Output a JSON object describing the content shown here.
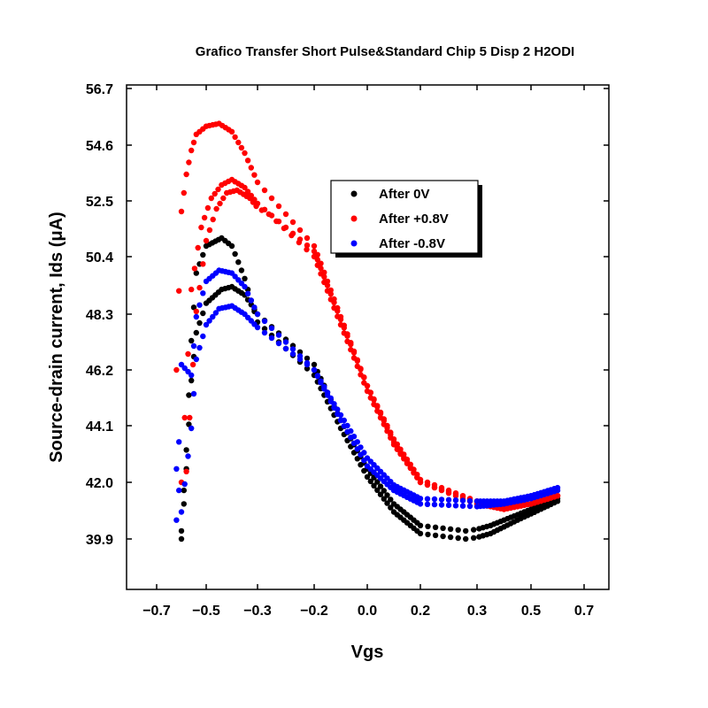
{
  "chart_data": {
    "type": "scatter",
    "title": "Grafico Transfer Short Pulse&Standard Chip 5 Disp 2 H2ODI",
    "xlabel": "Vgs",
    "ylabel": "Source-drain current, Ids (μA)",
    "xlim": [
      -0.77,
      0.77
    ],
    "ylim": [
      37.7,
      56.7
    ],
    "x_ticks": [
      -0.7,
      -0.5,
      -0.3,
      -0.2,
      0.0,
      0.2,
      0.3,
      0.5,
      0.7
    ],
    "x_tick_labels": [
      "−0.7",
      "−0.5",
      "−0.3",
      "−0.2",
      "0.0",
      "0.2",
      "0.3",
      "0.5",
      "0.7"
    ],
    "y_ticks": [
      39.9,
      42.0,
      44.1,
      46.2,
      48.3,
      50.4,
      52.5,
      54.6,
      56.7
    ],
    "y_tick_labels": [
      "39.9",
      "42.0",
      "44.1",
      "46.2",
      "48.3",
      "50.4",
      "52.5",
      "54.6",
      "56.7"
    ],
    "grid": false,
    "legend_position": "upper-center",
    "series": [
      {
        "name": "After 0V",
        "color": "#000000",
        "sweeps": [
          {
            "x": [
              -0.6,
              -0.58,
              -0.56,
              -0.54,
              -0.5,
              -0.44,
              -0.4,
              -0.35,
              -0.3,
              -0.2,
              -0.1,
              0.0,
              0.1,
              0.2,
              0.28,
              0.35,
              0.45,
              0.6
            ],
            "y": [
              40.2,
              43.2,
              47.3,
              49.8,
              50.8,
              51.1,
              50.8,
              49.6,
              48.0,
              46.0,
              44.0,
              42.2,
              40.9,
              40.1,
              39.9,
              40.1,
              40.6,
              41.3
            ]
          },
          {
            "x": [
              -0.6,
              -0.58,
              -0.56,
              -0.54,
              -0.5,
              -0.44,
              -0.4,
              -0.35,
              -0.3,
              -0.2,
              -0.1,
              0.0,
              0.1,
              0.2,
              0.28,
              0.35,
              0.45,
              0.6
            ],
            "y": [
              39.9,
              42.5,
              45.8,
              47.6,
              48.7,
              49.2,
              49.3,
              49.0,
              48.3,
              46.4,
              44.3,
              42.5,
              41.2,
              40.4,
              40.2,
              40.4,
              40.8,
              41.4
            ]
          }
        ]
      },
      {
        "name": "After +0.8V",
        "color": "#ff0000",
        "sweeps": [
          {
            "x": [
              -0.62,
              -0.6,
              -0.58,
              -0.56,
              -0.54,
              -0.5,
              -0.45,
              -0.4,
              -0.35,
              -0.3,
              -0.2,
              -0.1,
              0.0,
              0.1,
              0.2,
              0.3,
              0.4,
              0.5,
              0.6
            ],
            "y": [
              46.2,
              52.1,
              53.5,
              54.4,
              55.0,
              55.3,
              55.4,
              55.1,
              54.3,
              53.2,
              50.8,
              48.2,
              45.6,
              43.5,
              42.0,
              41.3,
              41.1,
              41.2,
              41.5
            ]
          },
          {
            "x": [
              -0.6,
              -0.56,
              -0.52,
              -0.48,
              -0.44,
              -0.4,
              -0.35,
              -0.3,
              -0.2,
              -0.1,
              0.0,
              0.1,
              0.2,
              0.3,
              0.4,
              0.5,
              0.6
            ],
            "y": [
              42.0,
              49.2,
              51.5,
              52.6,
              53.1,
              53.3,
              53.0,
              52.4,
              50.6,
              48.1,
              45.6,
              43.6,
              42.1,
              41.3,
              41.1,
              41.2,
              41.5
            ]
          },
          {
            "x": [
              -0.58,
              -0.54,
              -0.5,
              -0.46,
              -0.42,
              -0.38,
              -0.33,
              -0.28,
              -0.2,
              -0.1,
              0.0,
              0.1,
              0.2,
              0.3,
              0.4,
              0.5,
              0.6
            ],
            "y": [
              42.4,
              48.4,
              51.0,
              52.2,
              52.8,
              52.9,
              52.6,
              52.0,
              50.4,
              47.9,
              45.4,
              43.4,
              42.0,
              41.2,
              41.0,
              41.2,
              41.5
            ]
          }
        ]
      },
      {
        "name": "After -0.8V",
        "color": "#0000ff",
        "sweeps": [
          {
            "x": [
              -0.62,
              -0.6,
              -0.56,
              -0.54,
              -0.5,
              -0.45,
              -0.4,
              -0.35,
              -0.3,
              -0.2,
              -0.1,
              0.0,
              0.1,
              0.2,
              0.3,
              0.4,
              0.5,
              0.6
            ],
            "y": [
              40.6,
              46.4,
              46.0,
              48.2,
              49.5,
              49.9,
              49.8,
              49.3,
              48.3,
              46.2,
              44.3,
              42.6,
              41.7,
              41.2,
              41.1,
              41.2,
              41.4,
              41.7
            ]
          },
          {
            "x": [
              -0.62,
              -0.6,
              -0.56,
              -0.54,
              -0.5,
              -0.45,
              -0.4,
              -0.35,
              -0.3,
              -0.2,
              -0.1,
              0.0,
              0.1,
              0.2,
              0.3,
              0.4,
              0.5,
              0.6
            ],
            "y": [
              42.5,
              40.9,
              44.0,
              46.6,
              47.9,
              48.5,
              48.6,
              48.3,
              47.8,
              46.2,
              44.5,
              42.9,
              41.9,
              41.4,
              41.3,
              41.3,
              41.5,
              41.8
            ]
          }
        ]
      }
    ]
  }
}
